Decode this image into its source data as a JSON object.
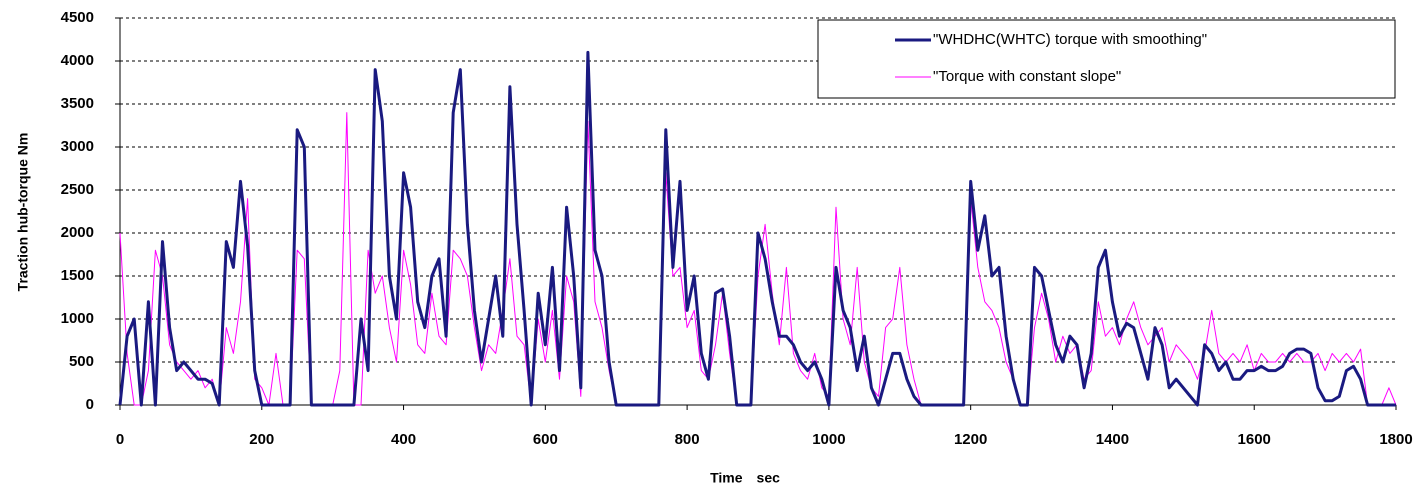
{
  "chart_data": {
    "type": "line",
    "x_label": "Time　sec",
    "y_label": "Traction hub-torque Nm",
    "x": [
      0,
      10,
      20,
      30,
      40,
      50,
      60,
      70,
      80,
      90,
      100,
      110,
      120,
      130,
      140,
      150,
      160,
      170,
      180,
      190,
      200,
      210,
      220,
      230,
      240,
      250,
      260,
      270,
      280,
      290,
      300,
      310,
      320,
      330,
      340,
      350,
      360,
      370,
      380,
      390,
      400,
      410,
      420,
      430,
      440,
      450,
      460,
      470,
      480,
      490,
      500,
      510,
      520,
      530,
      540,
      550,
      560,
      570,
      580,
      590,
      600,
      610,
      620,
      630,
      640,
      650,
      660,
      670,
      680,
      690,
      700,
      710,
      720,
      730,
      740,
      750,
      760,
      770,
      780,
      790,
      800,
      810,
      820,
      830,
      840,
      850,
      860,
      870,
      880,
      890,
      900,
      910,
      920,
      930,
      940,
      950,
      960,
      970,
      980,
      990,
      1000,
      1010,
      1020,
      1030,
      1040,
      1050,
      1060,
      1070,
      1080,
      1090,
      1100,
      1110,
      1120,
      1130,
      1140,
      1150,
      1160,
      1170,
      1180,
      1190,
      1200,
      1210,
      1220,
      1230,
      1240,
      1250,
      1260,
      1270,
      1280,
      1290,
      1300,
      1310,
      1320,
      1330,
      1340,
      1350,
      1360,
      1370,
      1380,
      1390,
      1400,
      1410,
      1420,
      1430,
      1440,
      1450,
      1460,
      1470,
      1480,
      1490,
      1500,
      1510,
      1520,
      1530,
      1540,
      1550,
      1560,
      1570,
      1580,
      1590,
      1600,
      1610,
      1620,
      1630,
      1640,
      1650,
      1660,
      1670,
      1680,
      1690,
      1700,
      1710,
      1720,
      1730,
      1740,
      1750,
      1760,
      1770,
      1780,
      1790,
      1800
    ],
    "series": [
      {
        "name": "\"WHDHC(WHTC) torque with smoothing\"",
        "color": "#1a1a80",
        "width": 3,
        "values": [
          0,
          800,
          1000,
          0,
          1200,
          0,
          1900,
          900,
          400,
          500,
          400,
          300,
          300,
          250,
          0,
          1900,
          1600,
          2600,
          1850,
          400,
          0,
          0,
          0,
          0,
          0,
          3200,
          3000,
          0,
          0,
          0,
          0,
          0,
          0,
          0,
          1000,
          400,
          3900,
          3300,
          1500,
          1000,
          2700,
          2300,
          1200,
          900,
          1500,
          1700,
          800,
          3400,
          3900,
          2100,
          1100,
          500,
          1000,
          1500,
          800,
          3700,
          2100,
          1100,
          0,
          1300,
          700,
          1600,
          400,
          2300,
          1500,
          200,
          4100,
          1800,
          1500,
          500,
          0,
          0,
          0,
          0,
          0,
          0,
          0,
          3200,
          1600,
          2600,
          1100,
          1500,
          600,
          300,
          1300,
          1350,
          800,
          0,
          0,
          0,
          2000,
          1700,
          1200,
          800,
          800,
          700,
          500,
          400,
          500,
          300,
          0,
          1600,
          1100,
          900,
          400,
          800,
          200,
          0,
          300,
          600,
          600,
          300,
          100,
          0,
          0,
          0,
          0,
          0,
          0,
          0,
          2600,
          1800,
          2200,
          1500,
          1600,
          800,
          300,
          0,
          0,
          1600,
          1500,
          1100,
          700,
          500,
          800,
          700,
          200,
          600,
          1600,
          1800,
          1200,
          800,
          950,
          900,
          600,
          300,
          900,
          700,
          200,
          300,
          200,
          100,
          0,
          700,
          600,
          400,
          500,
          300,
          300,
          400,
          400,
          450,
          400,
          400,
          450,
          600,
          650,
          650,
          600,
          200,
          50,
          50,
          100,
          400,
          450,
          300,
          0,
          0,
          0,
          0,
          0
        ]
      },
      {
        "name": "\"Torque with constant slope\"",
        "color": "#ff00ff",
        "width": 1,
        "values": [
          2000,
          600,
          0,
          0,
          400,
          1800,
          1500,
          700,
          500,
          400,
          300,
          400,
          200,
          300,
          0,
          900,
          600,
          1200,
          2400,
          300,
          200,
          0,
          600,
          0,
          0,
          1800,
          1700,
          0,
          0,
          0,
          0,
          400,
          3400,
          0,
          0,
          1800,
          1300,
          1500,
          900,
          500,
          1800,
          1400,
          700,
          600,
          1300,
          800,
          700,
          1800,
          1700,
          1500,
          900,
          400,
          700,
          600,
          1100,
          1700,
          800,
          700,
          0,
          1000,
          500,
          1100,
          300,
          1500,
          1200,
          100,
          3300,
          1200,
          900,
          400,
          0,
          0,
          0,
          0,
          0,
          0,
          0,
          2700,
          1500,
          1600,
          900,
          1100,
          400,
          300,
          700,
          1300,
          600,
          0,
          0,
          0,
          1500,
          2100,
          1300,
          700,
          1600,
          600,
          400,
          300,
          600,
          200,
          100,
          2300,
          1000,
          700,
          1600,
          500,
          200,
          100,
          900,
          1000,
          1600,
          700,
          300,
          0,
          0,
          0,
          0,
          0,
          0,
          0,
          2400,
          1600,
          1200,
          1100,
          900,
          500,
          300,
          0,
          0,
          900,
          1300,
          1000,
          500,
          800,
          600,
          700,
          300,
          400,
          1200,
          800,
          900,
          700,
          1000,
          1200,
          900,
          700,
          800,
          900,
          500,
          700,
          600,
          500,
          300,
          600,
          1100,
          600,
          500,
          600,
          500,
          700,
          400,
          600,
          500,
          500,
          600,
          500,
          600,
          500,
          500,
          600,
          400,
          600,
          500,
          600,
          500,
          650,
          0,
          0,
          0,
          200,
          0
        ]
      }
    ],
    "xlim": [
      0,
      1800
    ],
    "xticks": [
      0,
      200,
      400,
      600,
      800,
      1000,
      1200,
      1400,
      1600,
      1800
    ],
    "ylim": [
      0,
      4500
    ],
    "yticks": [
      0,
      500,
      1000,
      1500,
      2000,
      2500,
      3000,
      3500,
      4000,
      4500
    ],
    "grid": true,
    "legend": "upper right"
  }
}
